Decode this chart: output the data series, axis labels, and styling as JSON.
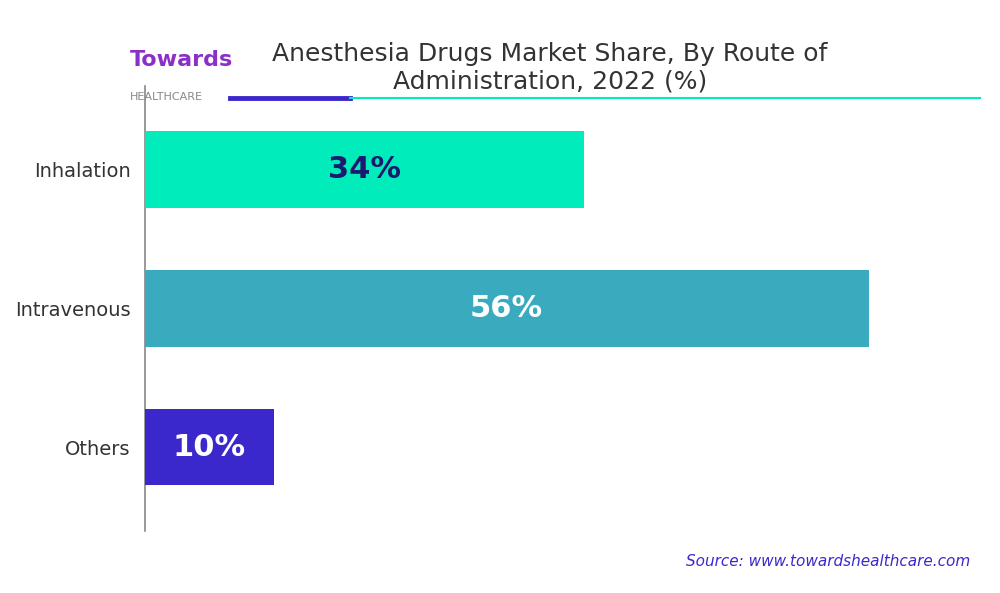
{
  "title": "Anesthesia Drugs Market Share, By Route of\nAdministration, 2022 (%)",
  "categories": [
    "Inhalation",
    "Intravenous",
    "Others"
  ],
  "values": [
    34,
    56,
    10
  ],
  "labels": [
    "34%",
    "56%",
    "10%"
  ],
  "bar_colors": [
    "#00EDBB",
    "#3AABBF",
    "#3B28CC"
  ],
  "label_colors": [
    "#1A1A6E",
    "#FFFFFF",
    "#FFFFFF"
  ],
  "background_color": "#FFFFFF",
  "source_text": "Source: www.towardshealthcare.com",
  "source_color": "#3B28CC",
  "title_color": "#333333",
  "title_fontsize": 18,
  "label_fontsize": 22,
  "yticklabel_fontsize": 14,
  "bar_height": 0.55,
  "xlim": [
    0,
    65
  ],
  "separator_line_color1": "#3B28CC",
  "separator_line_color2": "#00EDBB",
  "towards_color": "#8B2FC9",
  "healthcare_color": "#888888"
}
